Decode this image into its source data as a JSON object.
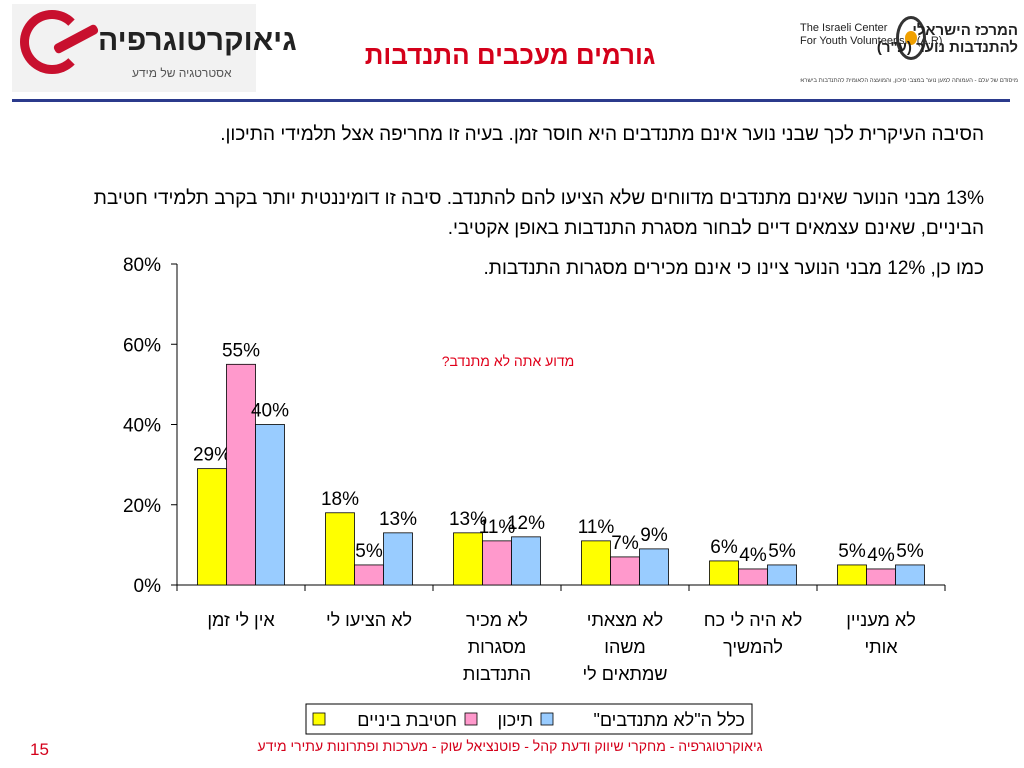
{
  "header": {
    "title": "גורמים מעכבים התנדבות",
    "logo_left": {
      "name": "גיאוקרטוגרפיה",
      "tagline": "אסטרטגיה של מידע"
    },
    "logo_right": {
      "english": "The Israeli Center\nFor Youth Volunteerism (A.R)",
      "hebrew": "המרכז הישראלי\nלהתנדבות נוער (ע\"ר)",
      "subtitle": "מיסודם של עלם - העמותה למען נוער במצבי סיכון, והמועצה הלאומית להתנדבות בישראל"
    }
  },
  "body": {
    "p1": "הסיבה העיקרית לכך שבני נוער אינם מתנדבים היא חוסר זמן. בעיה זו מחריפה אצל תלמידי התיכון.",
    "p2": "13% מבני הנוער שאינם מתנדבים מדווחים שלא הציעו להם להתנדב. סיבה זו דומיננטית יותר בקרב תלמידי חטיבת הביניים, שאינם עצמאים דיים לבחור מסגרת התנדבות באופן אקטיבי.",
    "p3": "כמו כן, 12% מבני הנוער ציינו כי אינם מכירים מסגרות התנדבות."
  },
  "chart_data": {
    "type": "bar",
    "title": "מדוע אתה לא מתנדב?",
    "ylim": [
      0,
      80
    ],
    "yticks": [
      "0%",
      "20%",
      "40%",
      "60%",
      "80%"
    ],
    "categories": [
      [
        "אין לי זמן"
      ],
      [
        "לא הציעו לי"
      ],
      [
        "לא מכיר",
        "מסגרות",
        "התנדבות"
      ],
      [
        "לא מצאתי",
        "משהו",
        "שמתאים לי"
      ],
      [
        "לא היה לי כח",
        "להמשיך"
      ],
      [
        "לא מעניין",
        "אותי"
      ]
    ],
    "series": [
      {
        "name": "חטיבת ביניים",
        "color": "#ffff00",
        "values": [
          29,
          18,
          13,
          11,
          6,
          5
        ],
        "labels": [
          "29%",
          "18%",
          "13%",
          "11%",
          "6%",
          "5%"
        ]
      },
      {
        "name": "תיכון",
        "color": "#ff99cc",
        "values": [
          55,
          5,
          11,
          7,
          4,
          4
        ],
        "labels": [
          "55%",
          "5%",
          "11%",
          "7%",
          "4%",
          "4%"
        ]
      },
      {
        "name": "כלל ה\"לא מתנדבים\"",
        "color": "#99ccff",
        "values": [
          40,
          13,
          12,
          9,
          5,
          5
        ],
        "labels": [
          "40%",
          "13%",
          "12%",
          "9%",
          "5%",
          "5%"
        ]
      }
    ],
    "legend_position": "bottom",
    "grid": false
  },
  "footer": {
    "text": "גיאוקרטוגרפיה - מחקרי שיווק ודעת קהל - פוטנציאל שוק - מערכות ופתרונות עתירי מידע",
    "page_number": "15"
  }
}
